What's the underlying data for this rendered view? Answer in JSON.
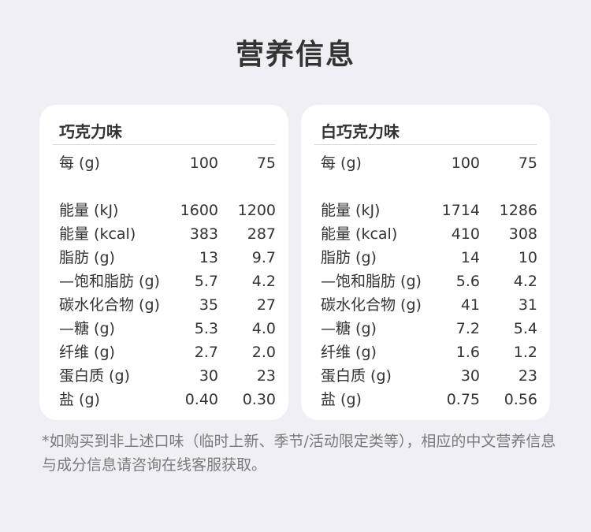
{
  "title": "营养信息",
  "cards": [
    {
      "name": "巧克力味",
      "per": {
        "label": "每 (g)",
        "v1": "100",
        "v2": "75"
      },
      "rows": [
        {
          "label": "能量 (kJ)",
          "v1": "1600",
          "v2": "1200"
        },
        {
          "label": "能量 (kcal)",
          "v1": "383",
          "v2": "287"
        },
        {
          "label": "脂肪 (g)",
          "v1": "13",
          "v2": "9.7"
        },
        {
          "label": "—饱和脂肪 (g)",
          "v1": "5.7",
          "v2": "4.2"
        },
        {
          "label": "碳水化合物 (g)",
          "v1": "35",
          "v2": "27"
        },
        {
          "label": "—糖 (g)",
          "v1": "5.3",
          "v2": "4.0"
        },
        {
          "label": "纤维 (g)",
          "v1": "2.7",
          "v2": "2.0"
        },
        {
          "label": "蛋白质 (g)",
          "v1": "30",
          "v2": "23"
        },
        {
          "label": "盐 (g)",
          "v1": "0.40",
          "v2": "0.30"
        }
      ]
    },
    {
      "name": "白巧克力味",
      "per": {
        "label": "每 (g)",
        "v1": "100",
        "v2": "75"
      },
      "rows": [
        {
          "label": "能量 (kJ)",
          "v1": "1714",
          "v2": "1286"
        },
        {
          "label": "能量 (kcal)",
          "v1": "410",
          "v2": "308"
        },
        {
          "label": "脂肪 (g)",
          "v1": "14",
          "v2": "10"
        },
        {
          "label": "—饱和脂肪 (g)",
          "v1": "5.6",
          "v2": "4.2"
        },
        {
          "label": "碳水化合物 (g)",
          "v1": "41",
          "v2": "31"
        },
        {
          "label": "—糖 (g)",
          "v1": "7.2",
          "v2": "5.4"
        },
        {
          "label": "纤维 (g)",
          "v1": "1.6",
          "v2": "1.2"
        },
        {
          "label": "蛋白质 (g)",
          "v1": "30",
          "v2": "23"
        },
        {
          "label": "盐 (g)",
          "v1": "0.75",
          "v2": "0.56"
        }
      ]
    }
  ],
  "note": "*如购买到非上述口味（临时上新、季节/活动限定类等），相应的中文营养信息与成分信息请咨询在线客服获取。"
}
